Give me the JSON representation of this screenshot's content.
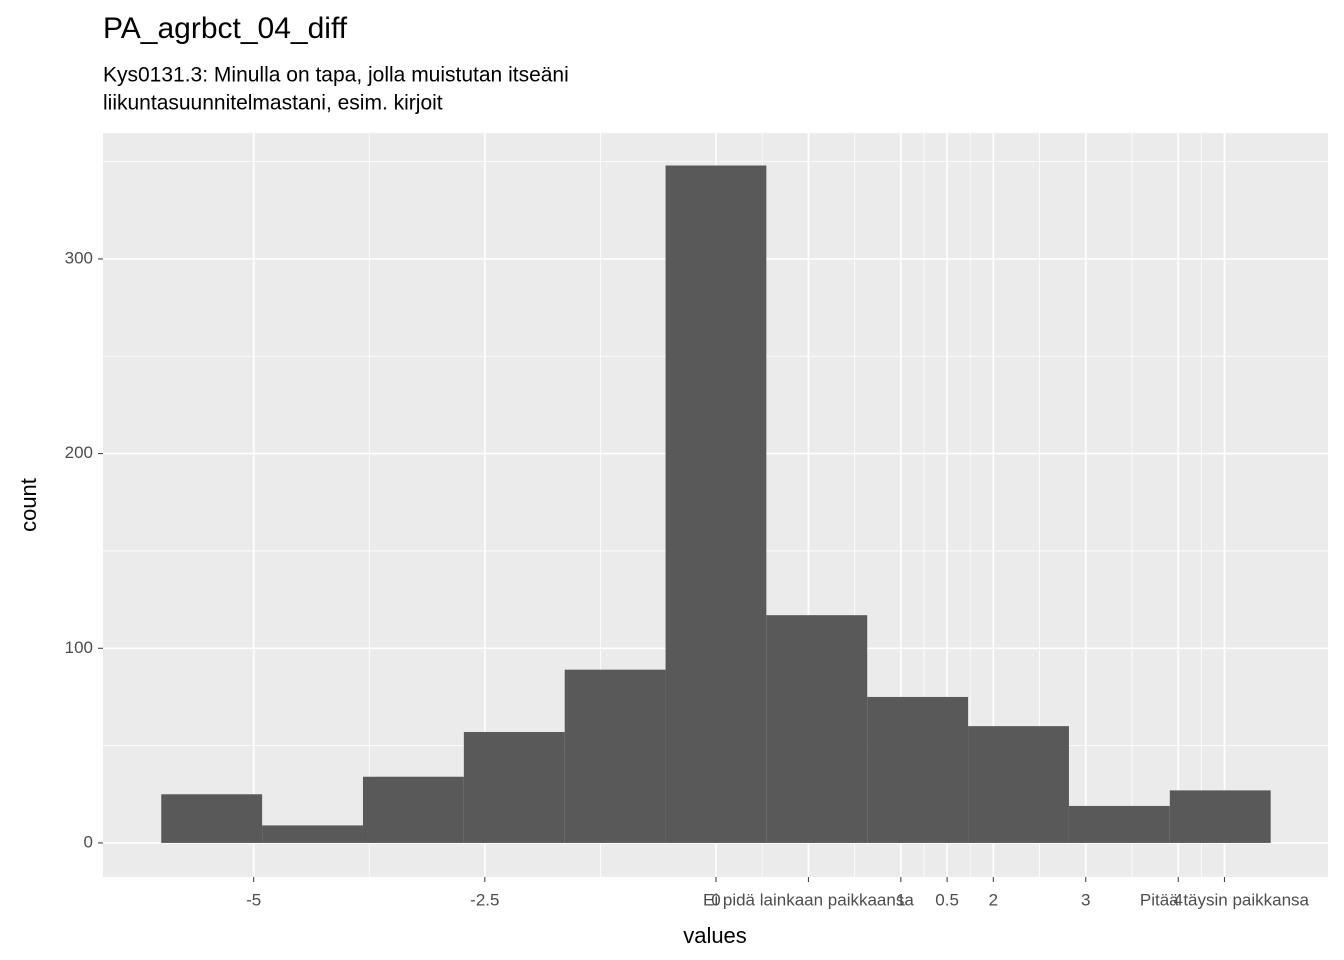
{
  "chart_data": {
    "type": "histogram",
    "title": "PA_agrbct_04_diff",
    "subtitle": [
      "Kys0131.3: Minulla on tapa, jolla muistutan itseäni",
      "liikuntasuunnitelmastani, esim. kirjoit"
    ],
    "x_label": "values",
    "y_label": "count",
    "bins": [
      -6,
      -4.909,
      -3.818,
      -2.727,
      -1.636,
      -0.545,
      0.545,
      1.636,
      2.727,
      3.818,
      4.909,
      6
    ],
    "values": [
      25,
      9,
      34,
      57,
      89,
      348,
      117,
      75,
      60,
      19,
      27
    ],
    "color": "#595959",
    "xlim": [
      -6.63,
      6.62
    ],
    "ylim": [
      -17.5,
      364.7
    ],
    "xticks": [
      -5,
      -2.5,
      0,
      {
        "value": 1,
        "label": "Ei pidä lainkaan paikkaansa"
      },
      {
        "value": 2,
        "label": "1"
      },
      {
        "value": 2.5,
        "label": "0.5"
      },
      {
        "value": 3,
        "label": "2"
      },
      {
        "value": 4,
        "label": "3"
      },
      {
        "value": 5,
        "label": "4"
      },
      {
        "value": 5.5,
        "label": "Pitää täysin paikkansa"
      }
    ],
    "yticks": [
      0,
      100,
      200,
      300
    ],
    "grid": true
  }
}
